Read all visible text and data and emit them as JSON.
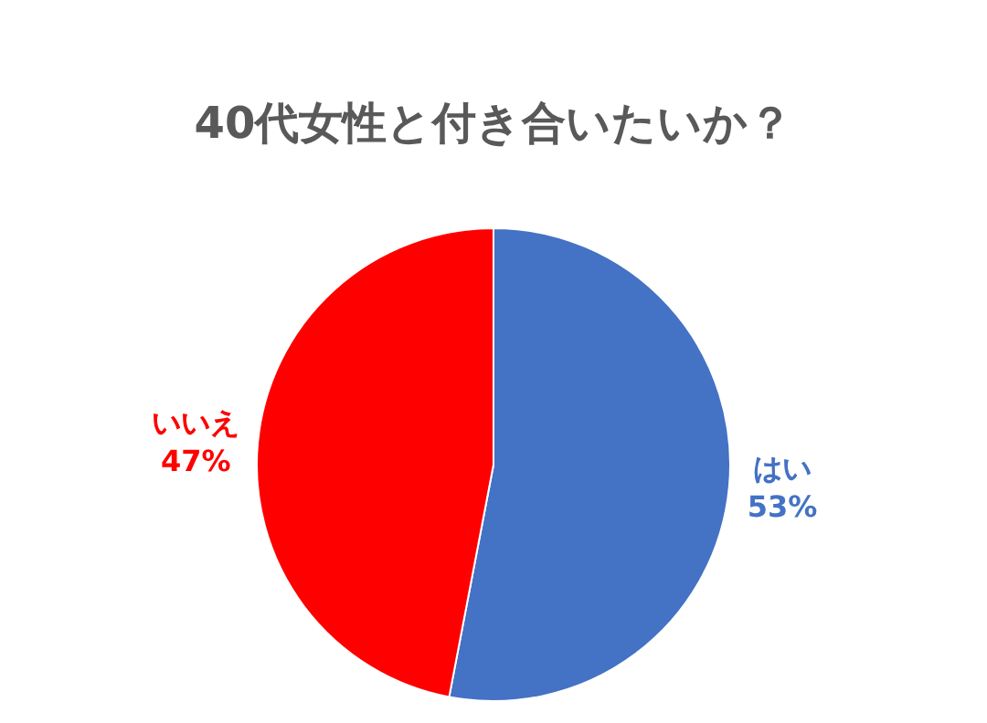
{
  "chart_data": {
    "type": "pie",
    "title": "40代女性と付き合いたいか？",
    "categories": [
      "はい",
      "いいえ"
    ],
    "values": [
      53,
      47
    ],
    "value_labels": [
      "53%",
      "47%"
    ],
    "colors": [
      "#4472c4",
      "#ff0000"
    ],
    "legend": false
  }
}
